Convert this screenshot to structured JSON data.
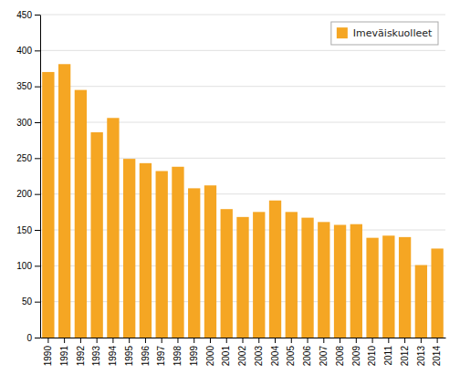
{
  "chart_data": {
    "type": "bar",
    "categories": [
      "1990",
      "1991",
      "1992",
      "1993",
      "1994",
      "1995",
      "1996",
      "1997",
      "1998",
      "1999",
      "2000",
      "2001",
      "2002",
      "2003",
      "2004",
      "2005",
      "2006",
      "2007",
      "2008",
      "2009",
      "2010",
      "2011",
      "2012",
      "2013",
      "2014"
    ],
    "series": [
      {
        "name": "Imeväiskuolleet",
        "color": "#F5A623",
        "values": [
          370,
          381,
          345,
          286,
          306,
          249,
          243,
          232,
          238,
          208,
          212,
          179,
          168,
          175,
          191,
          175,
          167,
          161,
          157,
          158,
          139,
          142,
          140,
          101,
          124
        ]
      }
    ],
    "ylim": [
      0,
      450
    ],
    "yticks": [
      0,
      50,
      100,
      150,
      200,
      250,
      300,
      350,
      400,
      450
    ],
    "grid": true,
    "legend": "upper right"
  }
}
